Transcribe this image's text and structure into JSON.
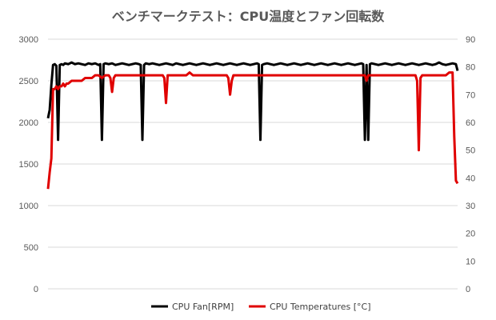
{
  "chart_data": {
    "type": "line",
    "title": "ベンチマークテスト：CPU温度とファン回転数",
    "xlabel": "",
    "ylabel": "",
    "y_left": {
      "min": 0,
      "max": 3000,
      "ticks": [
        0,
        500,
        1000,
        1500,
        2000,
        2500,
        3000
      ]
    },
    "y_right": {
      "min": 0,
      "max": 90,
      "ticks": [
        0,
        10,
        20,
        30,
        40,
        50,
        60,
        70,
        80,
        90
      ]
    },
    "grid": true,
    "legend": "bottom",
    "series": [
      {
        "name": "CPU Fan[RPM]",
        "axis": "left",
        "color": "#000000",
        "points": [
          [
            0,
            2050
          ],
          [
            1,
            2150
          ],
          [
            2,
            2450
          ],
          [
            3,
            2690
          ],
          [
            4,
            2700
          ],
          [
            5,
            2680
          ],
          [
            6,
            1790
          ],
          [
            7,
            2690
          ],
          [
            8,
            2700
          ],
          [
            9,
            2690
          ],
          [
            10,
            2710
          ],
          [
            12,
            2700
          ],
          [
            14,
            2720
          ],
          [
            16,
            2700
          ],
          [
            18,
            2710
          ],
          [
            20,
            2700
          ],
          [
            22,
            2690
          ],
          [
            24,
            2710
          ],
          [
            26,
            2700
          ],
          [
            28,
            2710
          ],
          [
            30,
            2690
          ],
          [
            31,
            2700
          ],
          [
            32,
            1790
          ],
          [
            33,
            2700
          ],
          [
            34,
            2710
          ],
          [
            36,
            2700
          ],
          [
            38,
            2710
          ],
          [
            40,
            2690
          ],
          [
            42,
            2700
          ],
          [
            44,
            2710
          ],
          [
            46,
            2700
          ],
          [
            48,
            2690
          ],
          [
            50,
            2700
          ],
          [
            52,
            2710
          ],
          [
            54,
            2700
          ],
          [
            55,
            2690
          ],
          [
            56,
            1790
          ],
          [
            57,
            2690
          ],
          [
            58,
            2710
          ],
          [
            60,
            2700
          ],
          [
            62,
            2710
          ],
          [
            64,
            2700
          ],
          [
            66,
            2690
          ],
          [
            68,
            2700
          ],
          [
            70,
            2710
          ],
          [
            72,
            2700
          ],
          [
            74,
            2690
          ],
          [
            76,
            2710
          ],
          [
            78,
            2700
          ],
          [
            80,
            2690
          ],
          [
            82,
            2700
          ],
          [
            84,
            2710
          ],
          [
            86,
            2700
          ],
          [
            88,
            2690
          ],
          [
            90,
            2700
          ],
          [
            92,
            2710
          ],
          [
            94,
            2700
          ],
          [
            96,
            2690
          ],
          [
            98,
            2700
          ],
          [
            100,
            2710
          ],
          [
            102,
            2700
          ],
          [
            104,
            2690
          ],
          [
            106,
            2700
          ],
          [
            108,
            2710
          ],
          [
            110,
            2700
          ],
          [
            112,
            2690
          ],
          [
            114,
            2700
          ],
          [
            116,
            2710
          ],
          [
            118,
            2700
          ],
          [
            120,
            2690
          ],
          [
            122,
            2700
          ],
          [
            124,
            2710
          ],
          [
            125,
            2700
          ],
          [
            126,
            1790
          ],
          [
            127,
            2690
          ],
          [
            128,
            2700
          ],
          [
            130,
            2710
          ],
          [
            132,
            2700
          ],
          [
            134,
            2690
          ],
          [
            136,
            2700
          ],
          [
            138,
            2710
          ],
          [
            140,
            2700
          ],
          [
            142,
            2690
          ],
          [
            144,
            2700
          ],
          [
            146,
            2710
          ],
          [
            148,
            2700
          ],
          [
            150,
            2690
          ],
          [
            152,
            2700
          ],
          [
            154,
            2710
          ],
          [
            156,
            2700
          ],
          [
            158,
            2690
          ],
          [
            160,
            2700
          ],
          [
            162,
            2710
          ],
          [
            164,
            2700
          ],
          [
            166,
            2690
          ],
          [
            168,
            2700
          ],
          [
            170,
            2710
          ],
          [
            172,
            2700
          ],
          [
            174,
            2690
          ],
          [
            176,
            2700
          ],
          [
            178,
            2710
          ],
          [
            180,
            2700
          ],
          [
            182,
            2690
          ],
          [
            184,
            2700
          ],
          [
            186,
            2710
          ],
          [
            187,
            2700
          ],
          [
            188,
            1790
          ],
          [
            189,
            2690
          ],
          [
            190,
            1790
          ],
          [
            191,
            2700
          ],
          [
            192,
            2710
          ],
          [
            194,
            2700
          ],
          [
            196,
            2690
          ],
          [
            198,
            2700
          ],
          [
            200,
            2710
          ],
          [
            202,
            2700
          ],
          [
            204,
            2690
          ],
          [
            206,
            2700
          ],
          [
            208,
            2710
          ],
          [
            210,
            2700
          ],
          [
            212,
            2690
          ],
          [
            214,
            2700
          ],
          [
            216,
            2710
          ],
          [
            218,
            2700
          ],
          [
            220,
            2690
          ],
          [
            222,
            2700
          ],
          [
            224,
            2710
          ],
          [
            226,
            2700
          ],
          [
            228,
            2690
          ],
          [
            230,
            2700
          ],
          [
            232,
            2720
          ],
          [
            234,
            2700
          ],
          [
            236,
            2690
          ],
          [
            238,
            2700
          ],
          [
            240,
            2710
          ],
          [
            242,
            2700
          ],
          [
            243,
            2620
          ]
        ]
      },
      {
        "name": "CPU Temperatures [°C]",
        "axis": "right",
        "color": "#e00000",
        "points": [
          [
            0,
            36
          ],
          [
            1,
            42
          ],
          [
            2,
            47
          ],
          [
            3,
            72
          ],
          [
            4,
            72
          ],
          [
            5,
            73
          ],
          [
            6,
            72
          ],
          [
            7,
            73
          ],
          [
            8,
            73
          ],
          [
            9,
            74
          ],
          [
            10,
            73
          ],
          [
            11,
            74
          ],
          [
            12,
            74
          ],
          [
            14,
            75
          ],
          [
            16,
            75
          ],
          [
            18,
            75
          ],
          [
            20,
            75
          ],
          [
            22,
            76
          ],
          [
            24,
            76
          ],
          [
            26,
            76
          ],
          [
            28,
            77
          ],
          [
            30,
            77
          ],
          [
            32,
            76
          ],
          [
            34,
            77
          ],
          [
            36,
            77
          ],
          [
            37,
            76
          ],
          [
            38,
            71
          ],
          [
            39,
            76
          ],
          [
            40,
            77
          ],
          [
            42,
            77
          ],
          [
            44,
            77
          ],
          [
            46,
            77
          ],
          [
            48,
            77
          ],
          [
            50,
            77
          ],
          [
            52,
            77
          ],
          [
            54,
            77
          ],
          [
            56,
            77
          ],
          [
            58,
            77
          ],
          [
            60,
            77
          ],
          [
            62,
            77
          ],
          [
            64,
            77
          ],
          [
            66,
            77
          ],
          [
            68,
            77
          ],
          [
            69,
            76
          ],
          [
            70,
            67
          ],
          [
            71,
            77
          ],
          [
            72,
            77
          ],
          [
            74,
            77
          ],
          [
            76,
            77
          ],
          [
            78,
            77
          ],
          [
            80,
            77
          ],
          [
            82,
            77
          ],
          [
            84,
            78
          ],
          [
            86,
            77
          ],
          [
            88,
            77
          ],
          [
            90,
            77
          ],
          [
            92,
            77
          ],
          [
            94,
            77
          ],
          [
            96,
            77
          ],
          [
            98,
            77
          ],
          [
            100,
            77
          ],
          [
            102,
            77
          ],
          [
            104,
            77
          ],
          [
            106,
            77
          ],
          [
            107,
            76
          ],
          [
            108,
            70
          ],
          [
            109,
            75
          ],
          [
            110,
            77
          ],
          [
            112,
            77
          ],
          [
            114,
            77
          ],
          [
            116,
            77
          ],
          [
            118,
            77
          ],
          [
            120,
            77
          ],
          [
            122,
            77
          ],
          [
            124,
            77
          ],
          [
            126,
            77
          ],
          [
            128,
            77
          ],
          [
            130,
            77
          ],
          [
            132,
            77
          ],
          [
            134,
            77
          ],
          [
            136,
            77
          ],
          [
            138,
            77
          ],
          [
            140,
            77
          ],
          [
            142,
            77
          ],
          [
            144,
            77
          ],
          [
            146,
            77
          ],
          [
            148,
            77
          ],
          [
            150,
            77
          ],
          [
            152,
            77
          ],
          [
            154,
            77
          ],
          [
            156,
            77
          ],
          [
            158,
            77
          ],
          [
            160,
            77
          ],
          [
            162,
            77
          ],
          [
            164,
            77
          ],
          [
            166,
            77
          ],
          [
            168,
            77
          ],
          [
            170,
            77
          ],
          [
            172,
            77
          ],
          [
            174,
            77
          ],
          [
            176,
            77
          ],
          [
            178,
            77
          ],
          [
            180,
            77
          ],
          [
            182,
            77
          ],
          [
            184,
            77
          ],
          [
            186,
            77
          ],
          [
            188,
            77
          ],
          [
            189,
            75
          ],
          [
            190,
            77
          ],
          [
            192,
            77
          ],
          [
            194,
            77
          ],
          [
            196,
            77
          ],
          [
            198,
            77
          ],
          [
            200,
            77
          ],
          [
            202,
            77
          ],
          [
            204,
            77
          ],
          [
            206,
            77
          ],
          [
            208,
            77
          ],
          [
            210,
            77
          ],
          [
            212,
            77
          ],
          [
            214,
            77
          ],
          [
            216,
            77
          ],
          [
            218,
            77
          ],
          [
            219,
            75
          ],
          [
            220,
            50
          ],
          [
            221,
            76
          ],
          [
            222,
            77
          ],
          [
            224,
            77
          ],
          [
            226,
            77
          ],
          [
            228,
            77
          ],
          [
            230,
            77
          ],
          [
            232,
            77
          ],
          [
            234,
            77
          ],
          [
            236,
            77
          ],
          [
            238,
            78
          ],
          [
            240,
            78
          ],
          [
            241,
            55
          ],
          [
            242,
            39
          ],
          [
            243,
            38
          ]
        ]
      }
    ]
  }
}
